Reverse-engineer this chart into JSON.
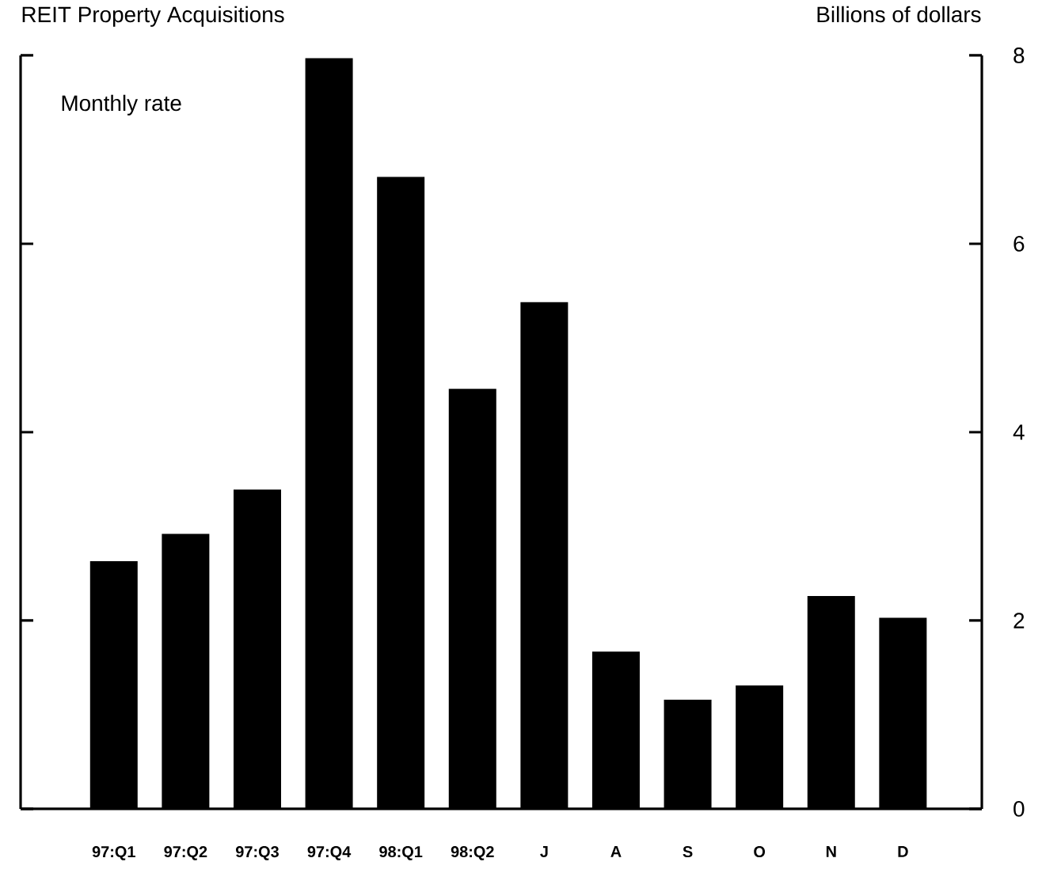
{
  "chart_data": {
    "type": "bar",
    "title": "REIT Property Acquisitions",
    "subtitle": "Monthly rate",
    "ylabel": "Billions of dollars",
    "categories": [
      "97:Q1",
      "97:Q2",
      "97:Q3",
      "97:Q4",
      "98:Q1",
      "98:Q2",
      "J",
      "A",
      "S",
      "O",
      "N",
      "D"
    ],
    "values": [
      2.63,
      2.92,
      3.39,
      7.97,
      6.71,
      4.46,
      5.38,
      1.67,
      1.16,
      1.31,
      2.26,
      2.03
    ],
    "color": "#000000",
    "ylim": [
      0,
      8
    ],
    "yticks": [
      0,
      2,
      4,
      6,
      8
    ]
  }
}
